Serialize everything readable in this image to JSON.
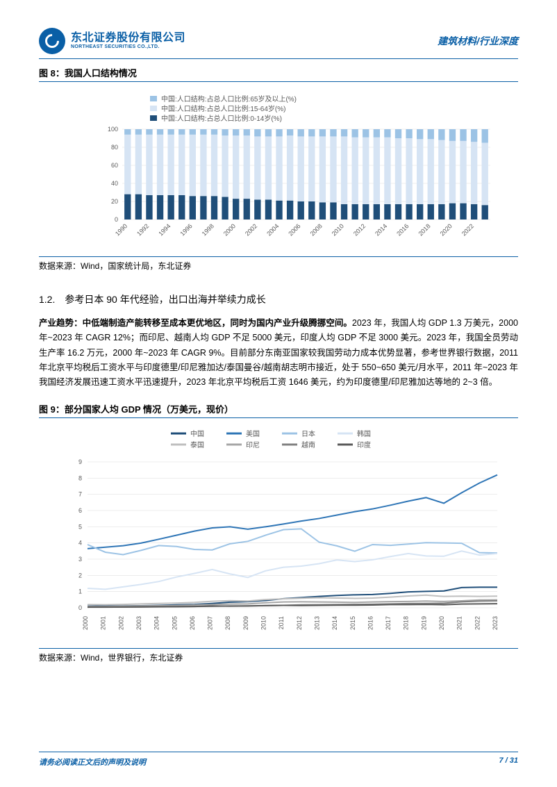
{
  "header": {
    "logo_cn": "东北证券股份有限公司",
    "logo_en": "NORTHEAST SECURITIES CO.,LTD.",
    "right_text": "建筑材料/行业深度"
  },
  "fig8": {
    "title": "图 8：我国人口结构情况",
    "source": "数据来源：Wind，国家统计局，东北证券",
    "type": "stacked-bar",
    "legend": [
      {
        "label": "中国:人口结构:占总人口比例:65岁及以上(%)",
        "color": "#9cc3e5"
      },
      {
        "label": "中国:人口结构:占总人口比例:15-64岁(%)",
        "color": "#d6e4f4"
      },
      {
        "label": "中国:人口结构:占总人口比例:0-14岁(%)",
        "color": "#1f4e79"
      }
    ],
    "years": [
      1990,
      1991,
      1992,
      1993,
      1994,
      1995,
      1996,
      1997,
      1998,
      1999,
      2000,
      2001,
      2002,
      2003,
      2004,
      2005,
      2006,
      2007,
      2008,
      2009,
      2010,
      2011,
      2012,
      2013,
      2014,
      2015,
      2016,
      2017,
      2018,
      2019,
      2020,
      2021,
      2022,
      2023
    ],
    "x_tick_labels": [
      "1990",
      "1992",
      "1994",
      "1996",
      "1998",
      "2000",
      "2002",
      "2004",
      "2006",
      "2008",
      "2010",
      "2012",
      "2014",
      "2016",
      "2018",
      "2020",
      "2022"
    ],
    "series_0_14": [
      28,
      28,
      27,
      27,
      27,
      27,
      26,
      26,
      26,
      25,
      23,
      23,
      22,
      22,
      21,
      21,
      20,
      20,
      19,
      19,
      17,
      17,
      17,
      17,
      17,
      17,
      17,
      17,
      17,
      17,
      18,
      18,
      17,
      16
    ],
    "series_15_64": [
      66,
      66,
      67,
      67,
      67,
      67,
      68,
      68,
      68,
      68,
      70,
      70,
      70,
      70,
      71,
      72,
      72,
      72,
      73,
      73,
      75,
      74,
      74,
      74,
      74,
      73,
      73,
      72,
      72,
      71,
      69,
      69,
      69,
      69
    ],
    "series_65_plus": [
      6,
      6,
      6,
      6,
      6,
      6,
      6,
      6,
      6,
      7,
      7,
      7,
      8,
      8,
      8,
      7,
      8,
      8,
      8,
      8,
      8,
      9,
      9,
      9,
      9,
      10,
      10,
      11,
      11,
      12,
      13,
      13,
      14,
      15
    ],
    "ylim": [
      0,
      100
    ],
    "ytick_step": 20,
    "bar_color_bottom": "#1f4e79",
    "bar_color_mid": "#d6e4f4",
    "bar_color_top": "#9cc3e5",
    "grid_color": "#d9d9d9",
    "tick_font_size": 9
  },
  "section_1_2": {
    "heading": "1.2.　参考日本 90 年代经验，出口出海并举续力成长",
    "paragraph_lead": "产业趋势：中低端制造产能转移至成本更优地区，同时为国内产业升级腾挪空间。",
    "paragraph_rest": "2023 年，我国人均 GDP 1.3 万美元，2000 年~2023 年 CAGR 12%；而印尼、越南人均 GDP 不足 5000 美元，印度人均 GDP 不足 3000 美元。2023 年，我国全员劳动生产率 16.2 万元，2000 年~2023 年 CAGR 9%。目前部分东南亚国家较我国劳动力成本优势显著，参考世界银行数据，2011 年北京平均税后工资水平与印度德里/印尼雅加达/泰国曼谷/越南胡志明市接近，处于 550~650 美元/月水平，2011 年~2023 年我国经济发展迅速工资水平迅速提升，2023 年北京平均税后工资 1646 美元，约为印度德里/印尼雅加达等地的 2~3 倍。"
  },
  "fig9": {
    "title": "图 9：部分国家人均 GDP 情况（万美元，现价）",
    "source": "数据来源：Wind，世界银行，东北证券",
    "type": "line",
    "legend": [
      {
        "label": "中国",
        "color": "#1f4e79"
      },
      {
        "label": "美国",
        "color": "#2e75b6"
      },
      {
        "label": "日本",
        "color": "#9cc3e5"
      },
      {
        "label": "韩国",
        "color": "#d6e4f4"
      },
      {
        "label": "泰国",
        "color": "#bfbfbf"
      },
      {
        "label": "印尼",
        "color": "#a6a6a6"
      },
      {
        "label": "越南",
        "color": "#808080"
      },
      {
        "label": "印度",
        "color": "#595959"
      }
    ],
    "years": [
      2000,
      2001,
      2002,
      2003,
      2004,
      2005,
      2006,
      2007,
      2008,
      2009,
      2010,
      2011,
      2012,
      2013,
      2014,
      2015,
      2016,
      2017,
      2018,
      2019,
      2020,
      2021,
      2022,
      2023
    ],
    "ylim": [
      0,
      9
    ],
    "ytick_step": 1,
    "grid_color": "#d9d9d9",
    "line_width": 2,
    "tick_font_size": 9,
    "series": {
      "china": [
        0.1,
        0.11,
        0.12,
        0.13,
        0.15,
        0.18,
        0.21,
        0.27,
        0.35,
        0.38,
        0.45,
        0.56,
        0.63,
        0.7,
        0.76,
        0.8,
        0.82,
        0.89,
        0.98,
        1.01,
        1.04,
        1.25,
        1.27,
        1.27
      ],
      "us": [
        3.65,
        3.74,
        3.83,
        3.99,
        4.23,
        4.48,
        4.73,
        4.93,
        5.0,
        4.85,
        5.0,
        5.17,
        5.35,
        5.51,
        5.72,
        5.93,
        6.1,
        6.33,
        6.58,
        6.8,
        6.45,
        7.1,
        7.7,
        8.2
      ],
      "japan": [
        3.9,
        3.43,
        3.28,
        3.54,
        3.84,
        3.78,
        3.6,
        3.57,
        3.95,
        4.1,
        4.48,
        4.82,
        4.87,
        4.05,
        3.82,
        3.49,
        3.9,
        3.85,
        3.93,
        4.02,
        4.0,
        3.98,
        3.4,
        3.38
      ],
      "korea": [
        1.2,
        1.14,
        1.29,
        1.44,
        1.62,
        1.9,
        2.12,
        2.36,
        2.09,
        1.87,
        2.28,
        2.5,
        2.57,
        2.72,
        2.95,
        2.85,
        2.96,
        3.16,
        3.35,
        3.2,
        3.18,
        3.5,
        3.25,
        3.35
      ],
      "thailand": [
        0.2,
        0.19,
        0.21,
        0.24,
        0.27,
        0.29,
        0.33,
        0.4,
        0.44,
        0.42,
        0.51,
        0.55,
        0.59,
        0.62,
        0.6,
        0.58,
        0.6,
        0.66,
        0.73,
        0.78,
        0.7,
        0.72,
        0.7,
        0.72
      ],
      "indonesia": [
        0.08,
        0.08,
        0.1,
        0.12,
        0.13,
        0.14,
        0.17,
        0.2,
        0.23,
        0.24,
        0.31,
        0.36,
        0.37,
        0.36,
        0.35,
        0.33,
        0.36,
        0.38,
        0.39,
        0.42,
        0.39,
        0.43,
        0.48,
        0.49
      ],
      "vietnam": [
        0.04,
        0.04,
        0.05,
        0.05,
        0.06,
        0.07,
        0.08,
        0.09,
        0.11,
        0.12,
        0.13,
        0.15,
        0.18,
        0.19,
        0.2,
        0.21,
        0.22,
        0.24,
        0.26,
        0.27,
        0.28,
        0.37,
        0.41,
        0.43
      ],
      "india": [
        0.04,
        0.05,
        0.05,
        0.06,
        0.07,
        0.07,
        0.08,
        0.11,
        0.1,
        0.11,
        0.14,
        0.15,
        0.14,
        0.15,
        0.16,
        0.16,
        0.17,
        0.2,
        0.2,
        0.21,
        0.19,
        0.23,
        0.24,
        0.25
      ]
    }
  },
  "footer": {
    "disclaimer": "请务必阅读正文后的声明及说明",
    "page": "7 / 31"
  }
}
